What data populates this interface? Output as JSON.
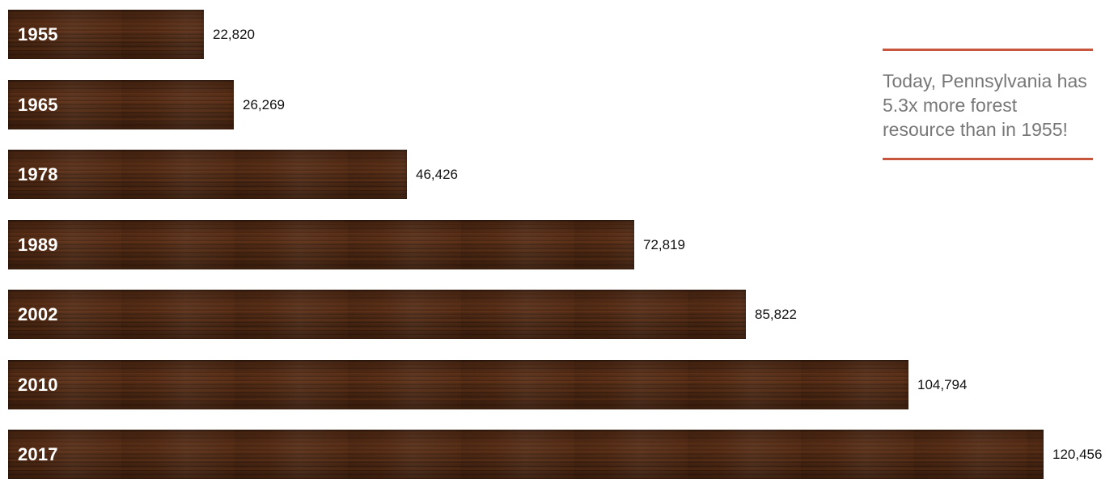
{
  "chart_data": {
    "type": "bar",
    "orientation": "horizontal",
    "categories": [
      "1955",
      "1965",
      "1978",
      "1989",
      "2002",
      "2010",
      "2017"
    ],
    "values": [
      22820,
      26269,
      46426,
      72819,
      85822,
      104794,
      120456
    ],
    "value_labels": [
      "22,820",
      "26,269",
      "46,426",
      "72,819",
      "85,822",
      "104,794",
      "120,456"
    ]
  },
  "callout": {
    "text": "Today, Pennsylvania has 5.3x more forest resource than in 1955!"
  },
  "colors": {
    "bar": "#4a2713",
    "rule": "#c8553d",
    "callout_text": "#777777"
  }
}
